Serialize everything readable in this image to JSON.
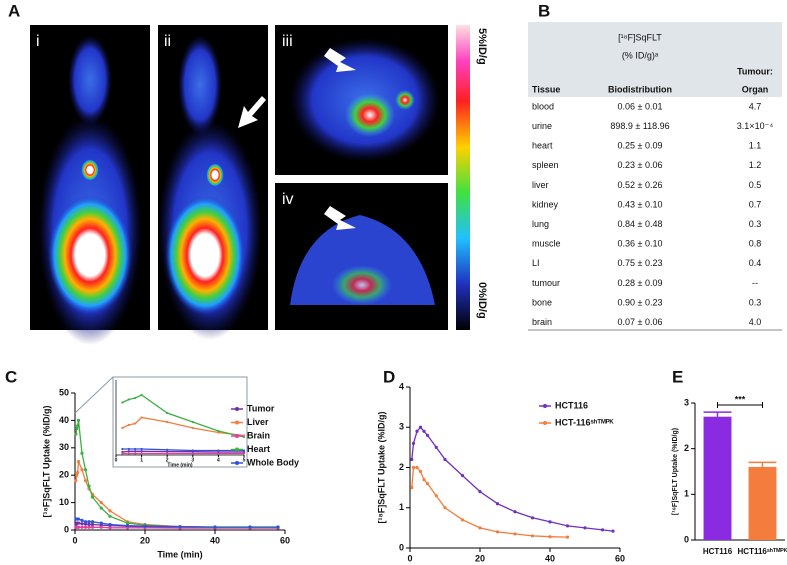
{
  "panels": [
    "A",
    "B",
    "C",
    "D",
    "E"
  ],
  "images": {
    "labels": [
      "i",
      "ii",
      "iii",
      "iv"
    ],
    "colorbar": {
      "max": "5%ID/g",
      "min": "0%ID/g"
    }
  },
  "table": {
    "tracer": "[¹⁸F]SqFLT",
    "unit": "(% ID/g)ᵃ",
    "columns": [
      "Tissue",
      "Biodistribution",
      "Tumour:",
      "Organ"
    ],
    "rows": [
      [
        "blood",
        "0.06 ± 0.01",
        "4.7"
      ],
      [
        "urine",
        "898.9 ± 118.96",
        "3.1×10⁻⁴"
      ],
      [
        "heart",
        "0.25 ± 0.09",
        "1.1"
      ],
      [
        "spleen",
        "0.23 ± 0.06",
        "1.2"
      ],
      [
        "liver",
        "0.52 ± 0.26",
        "0.5"
      ],
      [
        "kidney",
        "0.43 ± 0.10",
        "0.7"
      ],
      [
        "lung",
        "0.84 ± 0.48",
        "0.3"
      ],
      [
        "muscle",
        "0.36 ± 0.10",
        "0.8"
      ],
      [
        "LI",
        "0.75 ± 0.23",
        "0.4"
      ],
      [
        "tumour",
        "0.28 ± 0.09",
        "--"
      ],
      [
        "bone",
        "0.90 ± 0.23",
        "0.3"
      ],
      [
        "brain",
        "0.07 ± 0.06",
        "4.0"
      ]
    ]
  },
  "chart_data": [
    {
      "type": "line",
      "x_label": "Time (min)",
      "y_label": "[¹⁸F]SqFLT Uptake (%ID/g)",
      "x": [
        0.25,
        0.5,
        0.75,
        1,
        2,
        3,
        4,
        5,
        7.5,
        10,
        15,
        20,
        30,
        40,
        50,
        58
      ],
      "xlim": [
        0,
        60
      ],
      "xticks": [
        0,
        20,
        40,
        60
      ],
      "ylim": [
        0,
        50
      ],
      "yticks": [
        0,
        10,
        20,
        30,
        40,
        50
      ],
      "series": [
        {
          "name": "Tumor",
          "color": "#7030a0",
          "values": [
            2,
            2.5,
            2.5,
            2.5,
            2.3,
            2.2,
            2,
            2,
            1.8,
            1.6,
            1.4,
            1.2,
            1.1,
            1,
            1,
            1
          ]
        },
        {
          "name": "Liver",
          "color": "#f47c3c",
          "values": [
            18,
            20,
            21,
            25,
            22,
            18,
            15,
            13,
            10,
            7,
            3,
            2,
            1.2,
            1,
            1,
            1
          ]
        },
        {
          "name": "Brain",
          "color": "#e040a0",
          "values": [
            1,
            1,
            1,
            1,
            1,
            1,
            1,
            1,
            1,
            0.8,
            0.8,
            0.8,
            0.7,
            0.7,
            0.7,
            0.7
          ]
        },
        {
          "name": "Heart",
          "color": "#3cb043",
          "values": [
            35,
            37,
            38,
            40,
            28,
            22,
            16,
            12,
            8,
            5,
            2.5,
            1.8,
            1.2,
            1,
            1,
            1
          ]
        },
        {
          "name": "Whole Body",
          "color": "#3050e0",
          "values": [
            4,
            4,
            4,
            4,
            3.5,
            3,
            3,
            3,
            2.5,
            2,
            1.6,
            1.4,
            1.2,
            1.1,
            1.1,
            1.1
          ]
        }
      ],
      "inset": {
        "x_label": "Time (min)",
        "xlim": [
          0,
          5
        ],
        "xticks": [
          0,
          1,
          2,
          3,
          4,
          5
        ],
        "ylim": [
          0,
          50
        ]
      }
    },
    {
      "type": "line",
      "x_label": "Time (min)",
      "y_label": "[¹⁸F]SqFLT Uptake (%ID/g)",
      "x": [
        0.5,
        1,
        2,
        3,
        4,
        5,
        7.5,
        10,
        15,
        20,
        25,
        30,
        35,
        40,
        45,
        50,
        55,
        58
      ],
      "xlim": [
        0,
        60
      ],
      "xticks": [
        0,
        20,
        40,
        60
      ],
      "ylim": [
        0,
        4
      ],
      "yticks": [
        0,
        1,
        2,
        3,
        4
      ],
      "series": [
        {
          "name": "HCT116",
          "color": "#7030c0",
          "values": [
            2.2,
            2.6,
            2.9,
            3.0,
            2.9,
            2.8,
            2.5,
            2.2,
            1.8,
            1.4,
            1.1,
            0.9,
            0.75,
            0.65,
            0.55,
            0.5,
            0.45,
            0.42
          ]
        },
        {
          "name": "HCT-116ˢʰᵀᴹᴾᴷ",
          "color": "#f47c3c",
          "values": [
            1.5,
            2.0,
            2.0,
            1.9,
            1.7,
            1.6,
            1.3,
            1.0,
            0.7,
            0.5,
            0.4,
            0.35,
            0.3,
            0.28,
            0.27,
            null,
            null,
            null
          ]
        }
      ]
    },
    {
      "type": "bar",
      "y_label": "[¹⁸F]SqFLT Uptake (%ID/g)",
      "categories": [
        "HCT116",
        "HCT116ˢʰᵀᴹᴾᴷ"
      ],
      "values": [
        2.7,
        1.6
      ],
      "errors": [
        0.1,
        0.1
      ],
      "colors": [
        "#8a2be2",
        "#f47c3c"
      ],
      "ylim": [
        0,
        3
      ],
      "yticks": [
        0,
        1,
        2,
        3
      ],
      "annotation": "***"
    }
  ]
}
